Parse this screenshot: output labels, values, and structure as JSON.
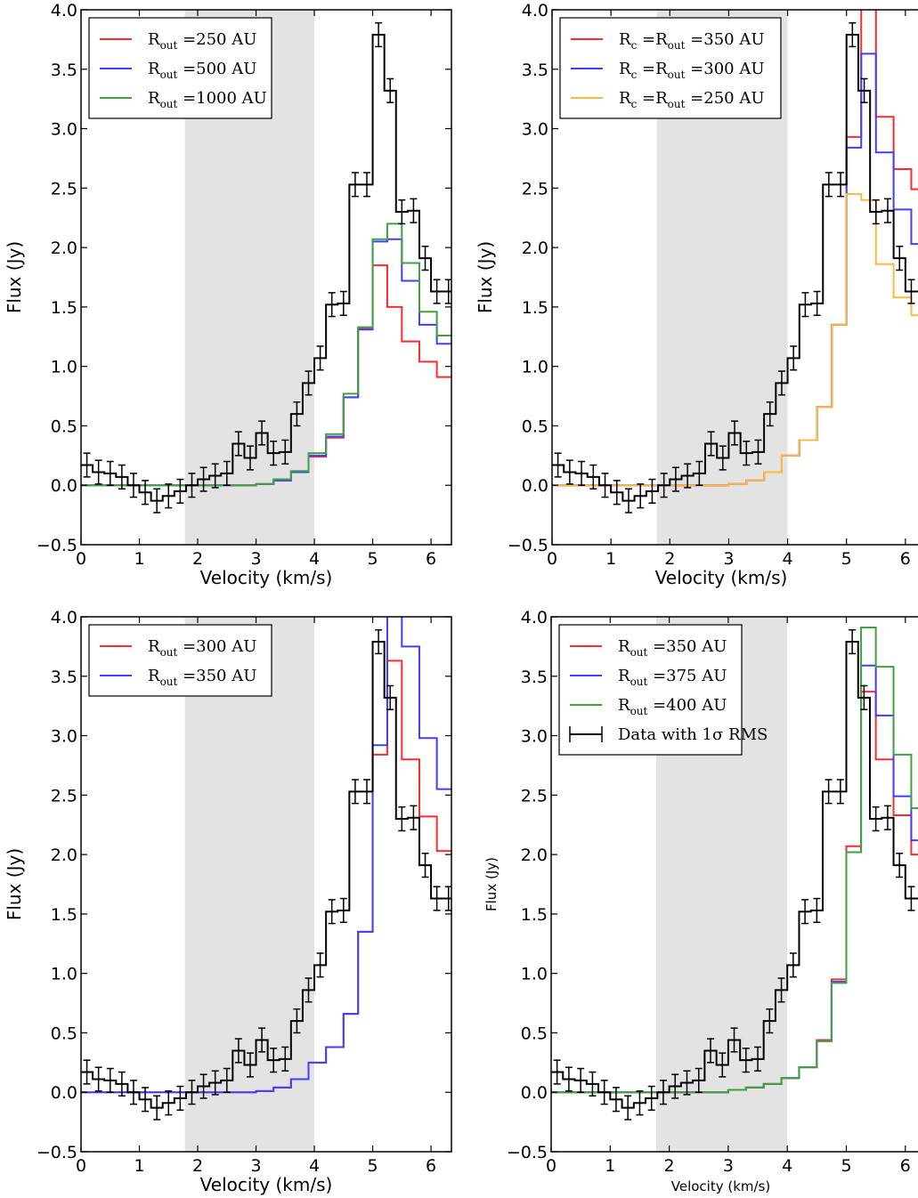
{
  "chart_data": [
    {
      "type": "line",
      "panel": "top-left",
      "xlabel": "Velocity (km/s)",
      "ylabel": "Flux (Jy)",
      "xlim": [
        0,
        6.35
      ],
      "ylim": [
        -0.5,
        4.0
      ],
      "xticks": [
        "0",
        "1",
        "2",
        "3",
        "4",
        "5",
        "6"
      ],
      "yticks": [
        "−0.5",
        "0.0",
        "0.5",
        "1.0",
        "1.5",
        "2.0",
        "2.5",
        "3.0",
        "3.5",
        "4.0"
      ],
      "shaded_band": [
        1.78,
        4.0
      ],
      "legend_position": "top-left",
      "series": [
        {
          "name": "R_out =250 AU",
          "name_main": "R",
          "name_sub": "out",
          "name_rest": " =250 AU",
          "color": "#ff2a2a",
          "values": [
            0,
            0,
            0,
            0,
            0,
            0,
            0,
            0,
            0,
            0,
            0.01,
            0.04,
            0.11,
            0.24,
            0.4,
            0.74,
            1.32,
            1.85,
            1.5,
            1.21,
            1.04,
            0.91,
            0.87
          ]
        },
        {
          "name": "R_out =500 AU",
          "name_main": "R",
          "name_sub": "out",
          "name_rest": " =500 AU",
          "color": "#3f3fff",
          "values": [
            0,
            0,
            0,
            0,
            0,
            0,
            0,
            0,
            0,
            0,
            0.01,
            0.04,
            0.11,
            0.25,
            0.41,
            0.74,
            1.31,
            2.05,
            2.07,
            1.72,
            1.35,
            1.19,
            1.12
          ]
        },
        {
          "name": "R_out =1000 AU",
          "name_main": "R",
          "name_sub": "out",
          "name_rest": " =1000 AU",
          "color": "#3fa23f",
          "values": [
            0,
            0,
            0,
            0,
            0,
            0,
            0,
            0,
            0,
            0,
            0.01,
            0.05,
            0.12,
            0.27,
            0.43,
            0.77,
            1.33,
            2.07,
            2.2,
            1.87,
            1.46,
            1.26,
            1.19
          ]
        }
      ],
      "data": {
        "x_edges": [
          0,
          0.2,
          0.4,
          0.6,
          0.8,
          1.0,
          1.2,
          1.4,
          1.6,
          1.8,
          2.0,
          2.2,
          2.4,
          2.6,
          2.8,
          3.0,
          3.2,
          3.4,
          3.6,
          3.8,
          4.0,
          4.2,
          4.4,
          4.6,
          4.8,
          5.0,
          5.2,
          5.4,
          5.6,
          5.8,
          6.0,
          6.2,
          6.4
        ]
      }
    },
    {
      "type": "line",
      "panel": "top-right",
      "xlabel": "Velocity (km/s)",
      "ylabel": "Flux (Jy)",
      "xlim": [
        0,
        6.35
      ],
      "ylim": [
        -0.5,
        4.0
      ],
      "xticks": [
        "0",
        "1",
        "2",
        "3",
        "4",
        "5",
        "6"
      ],
      "yticks": [
        "−0.5",
        "0.0",
        "0.5",
        "1.0",
        "1.5",
        "2.0",
        "2.5",
        "3.0",
        "3.5",
        "4.0"
      ],
      "shaded_band": [
        1.78,
        4.0
      ],
      "legend_position": "top-left",
      "series": [
        {
          "name": "R_c =R_out =350 AU",
          "name_main": "R",
          "name_sub": "c",
          "name_rest": " =R",
          "name_sub2": "out",
          "name_rest2": " =350 AU",
          "color": "#ff2a2a",
          "values": [
            0,
            0,
            0,
            0,
            0,
            0,
            0,
            0,
            0,
            0,
            0.01,
            0.04,
            0.11,
            0.25,
            0.38,
            0.66,
            1.35,
            2.93,
            4.05,
            3.1,
            2.66,
            2.49,
            2.4
          ]
        },
        {
          "name": "R_c =R_out =300 AU",
          "name_main": "R",
          "name_sub": "c",
          "name_rest": " =R",
          "name_sub2": "out",
          "name_rest2": " =300 AU",
          "color": "#3f3fff",
          "values": [
            0,
            0,
            0,
            0,
            0,
            0,
            0,
            0,
            0,
            0,
            0.01,
            0.04,
            0.11,
            0.25,
            0.38,
            0.66,
            1.35,
            2.84,
            3.63,
            2.8,
            2.32,
            2.03,
            1.91
          ]
        },
        {
          "name": "R_c =R_out =250 AU",
          "name_main": "R",
          "name_sub": "c",
          "name_rest": " =R",
          "name_sub2": "out",
          "name_rest2": " =250 AU",
          "color": "#ffb93f",
          "values": [
            0,
            0,
            0,
            0,
            0,
            0,
            0,
            0,
            0,
            0,
            0.01,
            0.04,
            0.11,
            0.25,
            0.38,
            0.66,
            1.35,
            2.45,
            2.4,
            1.86,
            1.58,
            1.43,
            1.36
          ]
        }
      ]
    },
    {
      "type": "line",
      "panel": "bottom-left",
      "xlabel": "Velocity (km/s)",
      "ylabel": "Flux (Jy)",
      "xlim": [
        0,
        6.35
      ],
      "ylim": [
        -0.5,
        4.0
      ],
      "xticks": [
        "0",
        "1",
        "2",
        "3",
        "4",
        "5",
        "6"
      ],
      "yticks": [
        "−0.5",
        "0.0",
        "0.5",
        "1.0",
        "1.5",
        "2.0",
        "2.5",
        "3.0",
        "3.5",
        "4.0"
      ],
      "shaded_band": [
        1.78,
        4.0
      ],
      "legend_position": "top-left",
      "series": [
        {
          "name": "R_out =300 AU",
          "name_main": "R",
          "name_sub": "out",
          "name_rest": " =300 AU",
          "color": "#ff2a2a",
          "values": [
            0,
            0,
            0,
            0,
            0,
            0,
            0,
            0,
            0,
            0,
            0.01,
            0.04,
            0.11,
            0.25,
            0.38,
            0.66,
            1.35,
            2.84,
            3.63,
            2.8,
            2.32,
            2.03,
            1.91
          ]
        },
        {
          "name": "R_out =350 AU",
          "name_main": "R",
          "name_sub": "out",
          "name_rest": " =350 AU",
          "color": "#3f3fff",
          "values": [
            0,
            0,
            0,
            0,
            0,
            0,
            0,
            0,
            0,
            0,
            0.01,
            0.04,
            0.11,
            0.25,
            0.38,
            0.66,
            1.35,
            2.92,
            4.05,
            3.75,
            2.98,
            2.55,
            2.38
          ]
        }
      ]
    },
    {
      "type": "line",
      "panel": "bottom-right",
      "xlabel": "Velocity (km/s)",
      "ylabel": "Flux (Jy)",
      "xlim": [
        0,
        6.35
      ],
      "ylim": [
        -0.5,
        4.0
      ],
      "xticks": [
        "0",
        "1",
        "2",
        "3",
        "4",
        "5",
        "6"
      ],
      "yticks": [
        "−0.5",
        "0.0",
        "0.5",
        "1.0",
        "1.5",
        "2.0",
        "2.5",
        "3.0",
        "3.5",
        "4.0"
      ],
      "shaded_band": [
        1.78,
        4.0
      ],
      "legend_position": "top-left",
      "series": [
        {
          "name": "R_out =350 AU",
          "name_main": "R",
          "name_sub": "out",
          "name_rest": " =350 AU",
          "color": "#ff2a2a",
          "values": [
            0,
            0,
            0,
            0,
            0,
            0,
            0,
            0,
            0,
            0,
            0.02,
            0.04,
            0.07,
            0.12,
            0.21,
            0.44,
            0.95,
            2.07,
            3.37,
            2.8,
            2.33,
            2.0,
            1.88
          ]
        },
        {
          "name": "R_out =375 AU",
          "name_main": "R",
          "name_sub": "out",
          "name_rest": " =375 AU",
          "color": "#3f3fff",
          "values": [
            0,
            0,
            0,
            0,
            0,
            0,
            0,
            0,
            0,
            0,
            0.02,
            0.04,
            0.07,
            0.12,
            0.21,
            0.43,
            0.93,
            2.02,
            3.59,
            3.17,
            2.49,
            2.12,
            1.92
          ]
        },
        {
          "name": "R_out =400 AU",
          "name_main": "R",
          "name_sub": "out",
          "name_rest": " =400 AU",
          "color": "#3fa23f",
          "values": [
            0,
            0,
            0,
            0,
            0,
            0,
            0,
            0,
            0,
            0,
            0.02,
            0.04,
            0.07,
            0.12,
            0.21,
            0.43,
            0.92,
            2.02,
            3.91,
            3.58,
            2.84,
            2.39,
            2.22
          ]
        }
      ],
      "data_legend": "Data with 1σ RMS"
    }
  ],
  "observed": {
    "color": "#000000",
    "x_centers": [
      0.1,
      0.3,
      0.5,
      0.7,
      0.9,
      1.1,
      1.3,
      1.5,
      1.7,
      1.9,
      2.1,
      2.3,
      2.5,
      2.7,
      2.9,
      3.1,
      3.3,
      3.5,
      3.7,
      3.9,
      4.1,
      4.3,
      4.5,
      4.7,
      4.9,
      5.1,
      5.3,
      5.5,
      5.7,
      5.9,
      6.1,
      6.3
    ],
    "flux": [
      0.17,
      0.11,
      0.1,
      0.07,
      0.0,
      -0.06,
      -0.13,
      -0.09,
      -0.05,
      0.0,
      0.05,
      0.08,
      0.1,
      0.35,
      0.23,
      0.44,
      0.27,
      0.28,
      0.6,
      0.86,
      1.07,
      1.52,
      1.53,
      2.53,
      2.53,
      3.79,
      3.32,
      2.3,
      2.31,
      1.91,
      1.63,
      1.63
    ],
    "sigma": 0.1
  },
  "model_x_edges": [
    0,
    0.3,
    0.6,
    0.9,
    1.2,
    1.5,
    1.8,
    2.1,
    2.4,
    2.7,
    3.0,
    3.3,
    3.6,
    3.9,
    4.2,
    4.5,
    4.75,
    5.0,
    5.25,
    5.5,
    5.8,
    6.1,
    6.4
  ]
}
